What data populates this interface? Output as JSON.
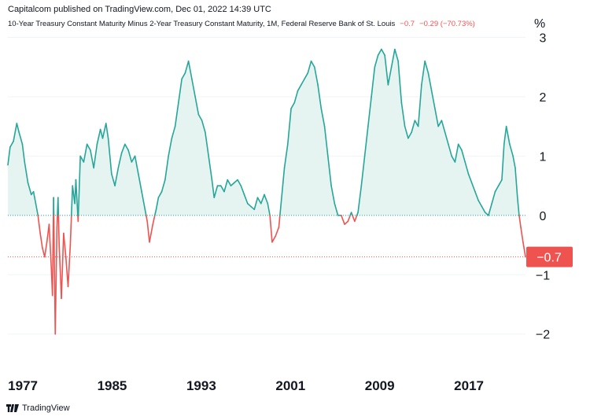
{
  "header": {
    "published": "Capitalcom published on TradingView.com, Dec 01, 2022 14:39 UTC"
  },
  "subtitle": {
    "text": "10-Year Treasury Constant Maturity Minus 2-Year Treasury Constant Maturity, 1M, Federal Reserve Bank of St. Louis",
    "last": "−0.7",
    "change": "−0.29 (−70.73%)"
  },
  "footer": {
    "brand": "TradingView"
  },
  "colors": {
    "positive": "#26a69a",
    "negative": "#ef5350",
    "fill": "#e6f4f1",
    "text": "#131722"
  },
  "chart_data": {
    "type": "area",
    "ylabel": "%",
    "ylim": [
      -2.6,
      3.1
    ],
    "xlim": [
      1976.5,
      2022.92
    ],
    "y_ticks": [
      "3",
      "2",
      "1",
      "0",
      "−1",
      "−2"
    ],
    "y_tick_values": [
      3,
      2,
      1,
      0,
      -1,
      -2
    ],
    "x_ticks": [
      "1977",
      "1985",
      "1993",
      "2001",
      "2009",
      "2017"
    ],
    "x_tick_values": [
      1977,
      1985,
      1993,
      2001,
      2009,
      2017
    ],
    "last_value_label": "−0.7",
    "last_value": -0.7,
    "series": [
      {
        "values": [
          [
            1976.5,
            0.85
          ],
          [
            1976.7,
            1.15
          ],
          [
            1977.0,
            1.25
          ],
          [
            1977.3,
            1.55
          ],
          [
            1977.5,
            1.4
          ],
          [
            1977.8,
            1.2
          ],
          [
            1978.0,
            0.9
          ],
          [
            1978.3,
            0.55
          ],
          [
            1978.6,
            0.35
          ],
          [
            1978.8,
            0.4
          ],
          [
            1979.0,
            0.2
          ],
          [
            1979.2,
            0.0
          ],
          [
            1979.4,
            -0.3
          ],
          [
            1979.6,
            -0.55
          ],
          [
            1979.8,
            -0.7
          ],
          [
            1980.0,
            -0.45
          ],
          [
            1980.2,
            -0.15
          ],
          [
            1980.4,
            -0.9
          ],
          [
            1980.5,
            -1.35
          ],
          [
            1980.6,
            0.3
          ],
          [
            1980.75,
            -2.0
          ],
          [
            1980.9,
            -0.2
          ],
          [
            1981.0,
            0.3
          ],
          [
            1981.1,
            -0.5
          ],
          [
            1981.3,
            -1.4
          ],
          [
            1981.5,
            -0.3
          ],
          [
            1981.7,
            -0.7
          ],
          [
            1981.9,
            -1.2
          ],
          [
            1982.1,
            -0.5
          ],
          [
            1982.3,
            0.5
          ],
          [
            1982.5,
            0.2
          ],
          [
            1982.6,
            0.6
          ],
          [
            1982.8,
            -0.1
          ],
          [
            1983.0,
            1.0
          ],
          [
            1983.3,
            0.9
          ],
          [
            1983.6,
            1.2
          ],
          [
            1983.9,
            1.1
          ],
          [
            1984.2,
            0.8
          ],
          [
            1984.5,
            1.2
          ],
          [
            1984.8,
            1.45
          ],
          [
            1985.0,
            1.3
          ],
          [
            1985.3,
            1.55
          ],
          [
            1985.5,
            1.3
          ],
          [
            1985.8,
            0.7
          ],
          [
            1986.1,
            0.5
          ],
          [
            1986.4,
            0.8
          ],
          [
            1986.7,
            1.05
          ],
          [
            1987.0,
            1.2
          ],
          [
            1987.3,
            1.1
          ],
          [
            1987.6,
            0.9
          ],
          [
            1987.9,
            1.0
          ],
          [
            1988.2,
            0.7
          ],
          [
            1988.5,
            0.4
          ],
          [
            1988.8,
            0.1
          ],
          [
            1989.0,
            -0.1
          ],
          [
            1989.2,
            -0.45
          ],
          [
            1989.5,
            -0.15
          ],
          [
            1989.8,
            0.1
          ],
          [
            1990.0,
            0.3
          ],
          [
            1990.3,
            0.4
          ],
          [
            1990.6,
            0.6
          ],
          [
            1990.9,
            1.0
          ],
          [
            1991.2,
            1.3
          ],
          [
            1991.5,
            1.5
          ],
          [
            1991.8,
            1.9
          ],
          [
            1992.1,
            2.3
          ],
          [
            1992.4,
            2.4
          ],
          [
            1992.7,
            2.6
          ],
          [
            1993.0,
            2.3
          ],
          [
            1993.3,
            2.0
          ],
          [
            1993.6,
            1.7
          ],
          [
            1993.9,
            1.6
          ],
          [
            1994.2,
            1.4
          ],
          [
            1994.5,
            1.0
          ],
          [
            1994.8,
            0.6
          ],
          [
            1995.0,
            0.3
          ],
          [
            1995.3,
            0.5
          ],
          [
            1995.6,
            0.5
          ],
          [
            1995.9,
            0.4
          ],
          [
            1996.2,
            0.6
          ],
          [
            1996.5,
            0.5
          ],
          [
            1996.8,
            0.55
          ],
          [
            1997.1,
            0.6
          ],
          [
            1997.4,
            0.5
          ],
          [
            1997.7,
            0.35
          ],
          [
            1998.0,
            0.2
          ],
          [
            1998.3,
            0.15
          ],
          [
            1998.6,
            0.1
          ],
          [
            1998.9,
            0.3
          ],
          [
            1999.2,
            0.2
          ],
          [
            1999.5,
            0.35
          ],
          [
            1999.8,
            0.2
          ],
          [
            2000.0,
            0.0
          ],
          [
            2000.2,
            -0.45
          ],
          [
            2000.5,
            -0.35
          ],
          [
            2000.8,
            -0.2
          ],
          [
            2001.0,
            0.2
          ],
          [
            2001.3,
            0.8
          ],
          [
            2001.6,
            1.2
          ],
          [
            2001.9,
            1.8
          ],
          [
            2002.2,
            1.9
          ],
          [
            2002.5,
            2.1
          ],
          [
            2002.8,
            2.2
          ],
          [
            2003.1,
            2.3
          ],
          [
            2003.4,
            2.4
          ],
          [
            2003.7,
            2.6
          ],
          [
            2004.0,
            2.5
          ],
          [
            2004.3,
            2.2
          ],
          [
            2004.6,
            1.8
          ],
          [
            2004.9,
            1.5
          ],
          [
            2005.2,
            1.0
          ],
          [
            2005.5,
            0.5
          ],
          [
            2005.8,
            0.2
          ],
          [
            2006.1,
            0.0
          ],
          [
            2006.4,
            0.0
          ],
          [
            2006.7,
            -0.15
          ],
          [
            2007.0,
            -0.1
          ],
          [
            2007.3,
            0.05
          ],
          [
            2007.6,
            -0.1
          ],
          [
            2007.9,
            0.05
          ],
          [
            2008.2,
            0.5
          ],
          [
            2008.5,
            1.0
          ],
          [
            2008.8,
            1.5
          ],
          [
            2009.1,
            2.0
          ],
          [
            2009.4,
            2.5
          ],
          [
            2009.7,
            2.7
          ],
          [
            2010.0,
            2.8
          ],
          [
            2010.3,
            2.7
          ],
          [
            2010.6,
            2.2
          ],
          [
            2010.9,
            2.5
          ],
          [
            2011.2,
            2.8
          ],
          [
            2011.5,
            2.6
          ],
          [
            2011.8,
            1.9
          ],
          [
            2012.1,
            1.5
          ],
          [
            2012.4,
            1.3
          ],
          [
            2012.7,
            1.4
          ],
          [
            2013.0,
            1.6
          ],
          [
            2013.3,
            1.5
          ],
          [
            2013.6,
            2.2
          ],
          [
            2013.9,
            2.6
          ],
          [
            2014.2,
            2.4
          ],
          [
            2014.5,
            2.1
          ],
          [
            2014.8,
            1.8
          ],
          [
            2015.1,
            1.5
          ],
          [
            2015.4,
            1.6
          ],
          [
            2015.7,
            1.4
          ],
          [
            2016.0,
            1.2
          ],
          [
            2016.3,
            1.0
          ],
          [
            2016.6,
            0.9
          ],
          [
            2016.9,
            1.2
          ],
          [
            2017.2,
            1.1
          ],
          [
            2017.5,
            0.9
          ],
          [
            2017.8,
            0.7
          ],
          [
            2018.1,
            0.55
          ],
          [
            2018.4,
            0.4
          ],
          [
            2018.7,
            0.25
          ],
          [
            2019.0,
            0.15
          ],
          [
            2019.3,
            0.05
          ],
          [
            2019.6,
            0.0
          ],
          [
            2019.9,
            0.2
          ],
          [
            2020.2,
            0.4
          ],
          [
            2020.5,
            0.5
          ],
          [
            2020.8,
            0.6
          ],
          [
            2021.0,
            1.2
          ],
          [
            2021.2,
            1.5
          ],
          [
            2021.5,
            1.2
          ],
          [
            2021.8,
            1.0
          ],
          [
            2022.0,
            0.8
          ],
          [
            2022.2,
            0.3
          ],
          [
            2022.35,
            0.0
          ],
          [
            2022.5,
            -0.2
          ],
          [
            2022.7,
            -0.45
          ],
          [
            2022.92,
            -0.7
          ]
        ]
      }
    ]
  }
}
